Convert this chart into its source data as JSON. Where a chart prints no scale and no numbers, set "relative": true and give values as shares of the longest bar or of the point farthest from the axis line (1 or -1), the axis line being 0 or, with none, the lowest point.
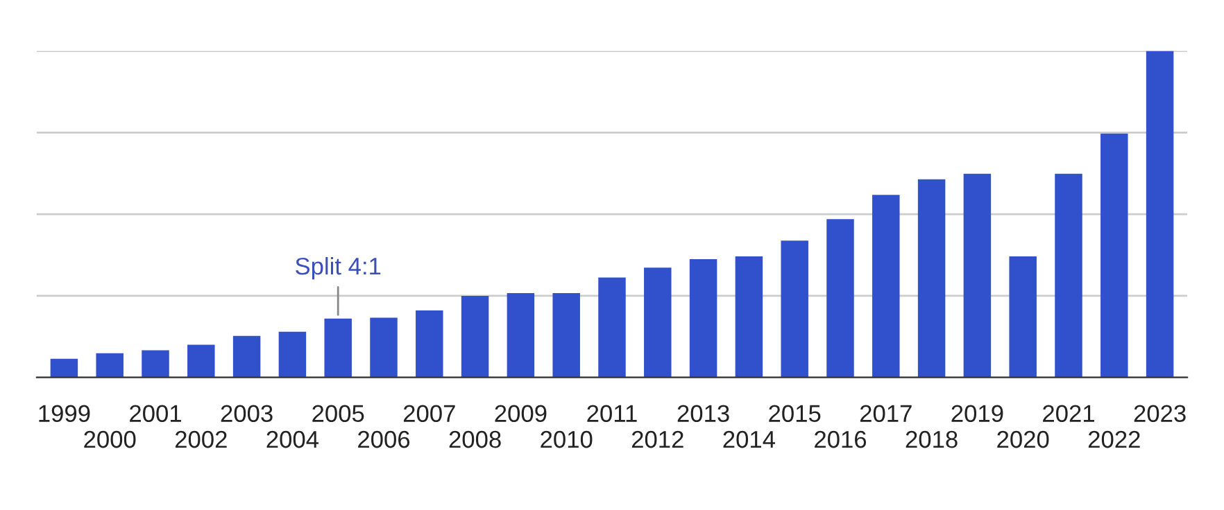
{
  "chart_data": {
    "type": "bar",
    "relative": true,
    "color": "#3150cc",
    "grid": "y",
    "categories": [
      "1999",
      "2000",
      "2001",
      "2002",
      "2003",
      "2004",
      "2005",
      "2006",
      "2007",
      "2008",
      "2009",
      "2010",
      "2011",
      "2012",
      "2013",
      "2014",
      "2015",
      "2016",
      "2017",
      "2018",
      "2019",
      "2020",
      "2021",
      "2022",
      "2023"
    ],
    "values": [
      0.057,
      0.074,
      0.083,
      0.1,
      0.127,
      0.14,
      0.18,
      0.183,
      0.205,
      0.25,
      0.258,
      0.258,
      0.306,
      0.336,
      0.362,
      0.371,
      0.419,
      0.485,
      0.559,
      0.607,
      0.624,
      0.371,
      0.624,
      0.747,
      1
    ],
    "annotations": [
      {
        "text": "Split 4:1",
        "x": "2005",
        "y": 0.18
      }
    ]
  }
}
